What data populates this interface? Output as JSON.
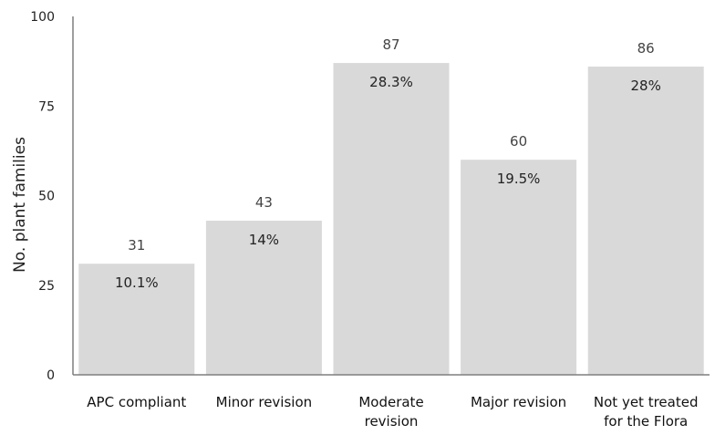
{
  "chart_data": {
    "type": "bar",
    "categories": [
      [
        "APC compliant"
      ],
      [
        "Minor revision"
      ],
      [
        "Moderate",
        "revision"
      ],
      [
        "Major revision"
      ],
      [
        "Not yet treated",
        "for the Flora"
      ]
    ],
    "values": [
      31,
      43,
      87,
      60,
      86
    ],
    "percent_labels": [
      "10.1%",
      "14%",
      "28.3%",
      "19.5%",
      "28%"
    ],
    "ylabel": "No. plant families",
    "ylim": [
      0,
      100
    ],
    "yticks": [
      0,
      25,
      50,
      75,
      100
    ],
    "bar_color": "#d9d9d9",
    "axis_color": "#7f7f7f",
    "grid": false
  }
}
